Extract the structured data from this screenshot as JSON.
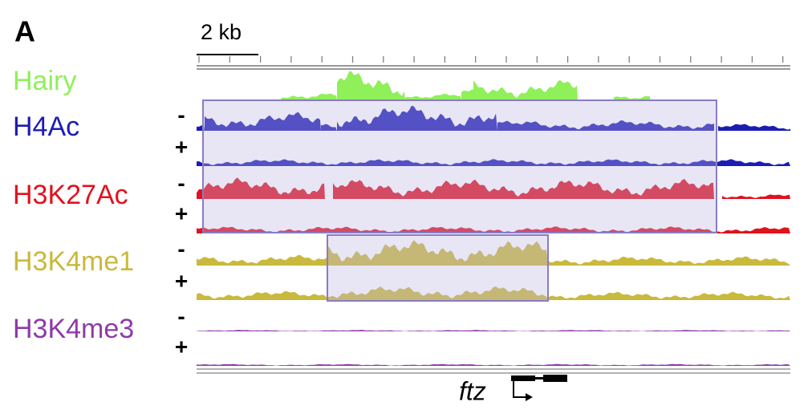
{
  "panel_label": "A",
  "scale_bar": "2 kb",
  "tracks": [
    {
      "name": "Hairy",
      "color": "#8ff05a"
    },
    {
      "name": "H4Ac",
      "color": "#1c1cb4",
      "strands": [
        "-",
        "+"
      ]
    },
    {
      "name": "H3K27Ac",
      "color": "#e0121e",
      "strands": [
        "-",
        "+"
      ]
    },
    {
      "name": "H3K4me1",
      "color": "#c9b93c",
      "strands": [
        "-",
        "+"
      ]
    },
    {
      "name": "H3K4me3",
      "color": "#8e3aa8",
      "strands": [
        "-",
        "+"
      ]
    }
  ],
  "gene": "ftz"
}
